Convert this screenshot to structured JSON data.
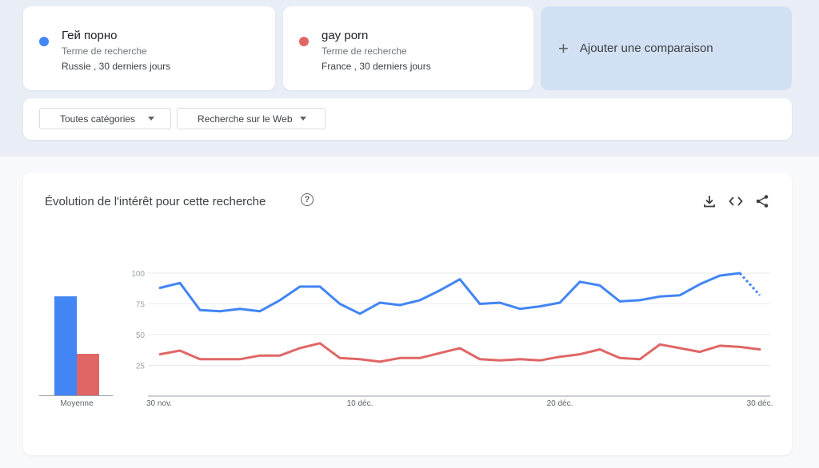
{
  "terms": [
    {
      "title": "Гей порно",
      "subtitle": "Terme de recherche",
      "region": "Russie , 30 derniers jours",
      "color": "#4285f4"
    },
    {
      "title": "gay porn",
      "subtitle": "Terme de recherche",
      "region": "France , 30 derniers jours",
      "color": "#e06666"
    }
  ],
  "add_comparison": {
    "label": "Ajouter une comparaison",
    "icon": "plus-icon"
  },
  "filters": {
    "category": "Toutes catégories",
    "search_type": "Recherche sur le Web"
  },
  "chart_section": {
    "title": "Évolution de l'intérêt pour cette recherche",
    "icons": [
      "help-icon",
      "download-icon",
      "embed-icon",
      "share-icon"
    ]
  },
  "chart_data": [
    {
      "type": "bar",
      "categories": [
        "Moyenne"
      ],
      "series": [
        {
          "values": [
            81
          ],
          "color": "#4285f4"
        },
        {
          "values": [
            34
          ],
          "color": "#e06666"
        }
      ],
      "ylim": [
        0,
        100
      ]
    },
    {
      "type": "line",
      "x": [
        "30 nov.",
        "1 déc.",
        "2 déc.",
        "3 déc.",
        "4 déc.",
        "5 déc.",
        "6 déc.",
        "7 déc.",
        "8 déc.",
        "9 déc.",
        "10 déc.",
        "11 déc.",
        "12 déc.",
        "13 déc.",
        "14 déc.",
        "15 déc.",
        "16 déc.",
        "17 déc.",
        "18 déc.",
        "19 déc.",
        "20 déc.",
        "21 déc.",
        "22 déc.",
        "23 déc.",
        "24 déc.",
        "25 déc.",
        "26 déc.",
        "27 déc.",
        "28 déc.",
        "29 déc.",
        "30 déc."
      ],
      "x_ticks": [
        "30 nov.",
        "10 déc.",
        "20 déc.",
        "30 déc."
      ],
      "y_ticks": [
        100,
        75,
        50,
        25
      ],
      "ylim": [
        0,
        100
      ],
      "grid": true,
      "series": [
        {
          "color": "#4285f4",
          "partial_last": true,
          "values": [
            88,
            92,
            70,
            69,
            71,
            69,
            78,
            89,
            89,
            75,
            67,
            76,
            74,
            78,
            86,
            95,
            75,
            76,
            71,
            73,
            76,
            93,
            90,
            77,
            78,
            81,
            82,
            91,
            98,
            100,
            82
          ]
        },
        {
          "color": "#e06666",
          "partial_last": false,
          "values": [
            34,
            37,
            30,
            30,
            30,
            33,
            33,
            39,
            43,
            31,
            30,
            28,
            31,
            31,
            35,
            39,
            30,
            29,
            30,
            29,
            32,
            34,
            38,
            31,
            30,
            42,
            39,
            36,
            41,
            40,
            38
          ]
        }
      ]
    }
  ]
}
